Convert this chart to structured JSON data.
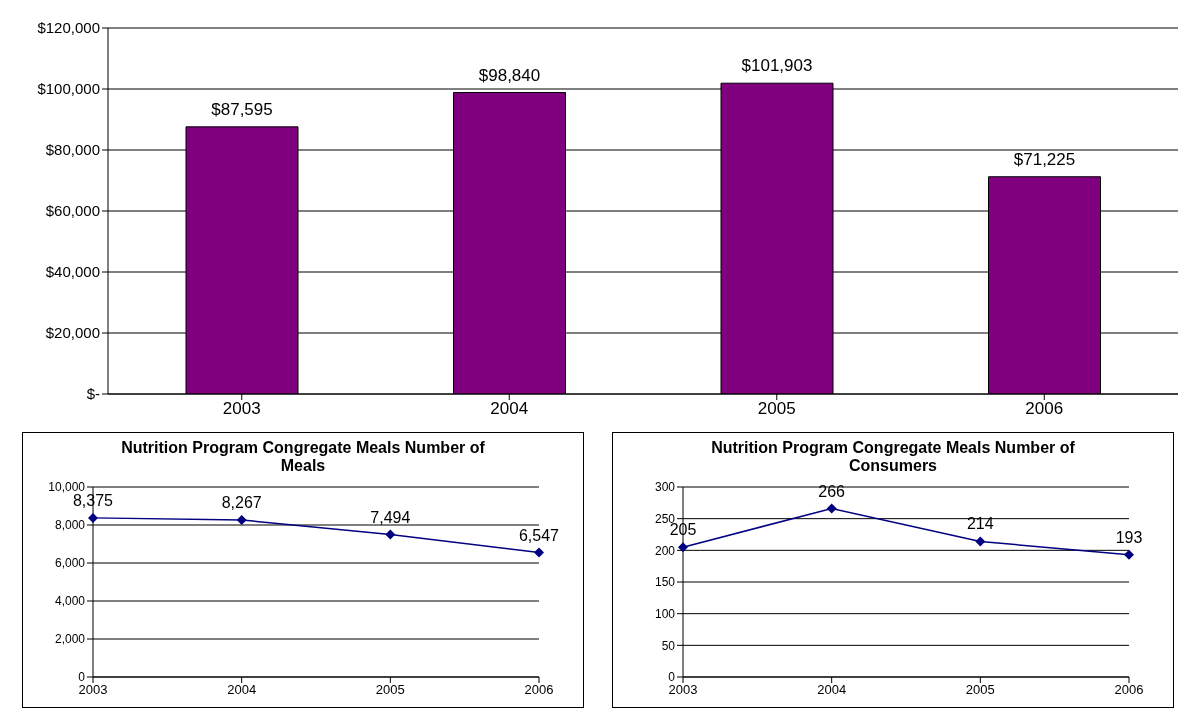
{
  "chart_data": [
    {
      "type": "bar",
      "categories": [
        "2003",
        "2004",
        "2005",
        "2006"
      ],
      "values": [
        87595,
        98840,
        101903,
        71225
      ],
      "color": "#800080",
      "value_labels": [
        "$87,595",
        "$98,840",
        "$101,903",
        "$71,225"
      ],
      "ylim": [
        0,
        120000
      ],
      "yticks": [
        {
          "value": 0,
          "label": "$-"
        },
        {
          "value": 20000,
          "label": "$20,000"
        },
        {
          "value": 40000,
          "label": "$40,000"
        },
        {
          "value": 60000,
          "label": "$60,000"
        },
        {
          "value": 80000,
          "label": "$80,000"
        },
        {
          "value": 100000,
          "label": "$100,000"
        },
        {
          "value": 120000,
          "label": "$120,000"
        }
      ],
      "grid": "y"
    },
    {
      "type": "line",
      "title": "Nutrition Program Congregate Meals Number of Meals",
      "categories": [
        "2003",
        "2004",
        "2005",
        "2006"
      ],
      "values": [
        8375,
        8267,
        7494,
        6547
      ],
      "color": "#000080",
      "value_labels": [
        "8,375",
        "8,267",
        "7,494",
        "6,547"
      ],
      "ylim": [
        0,
        10000
      ],
      "yticks": [
        0,
        {
          "value": 2000,
          "label": "2,000"
        },
        {
          "value": 4000,
          "label": "4,000"
        },
        {
          "value": 6000,
          "label": "6,000"
        },
        {
          "value": 8000,
          "label": "8,000"
        },
        {
          "value": 10000,
          "label": "10,000"
        }
      ],
      "grid": "y",
      "marker": "diamond"
    },
    {
      "type": "line",
      "title": "Nutrition Program Congregate Meals Number of Consumers",
      "categories": [
        "2003",
        "2004",
        "2005",
        "2006"
      ],
      "values": [
        205,
        266,
        214,
        193
      ],
      "color": "#000080",
      "data_labels": true,
      "ylim": [
        0,
        300
      ],
      "yticks": [
        0,
        50,
        100,
        150,
        200,
        250,
        300
      ],
      "grid": "y",
      "marker": "diamond"
    }
  ]
}
